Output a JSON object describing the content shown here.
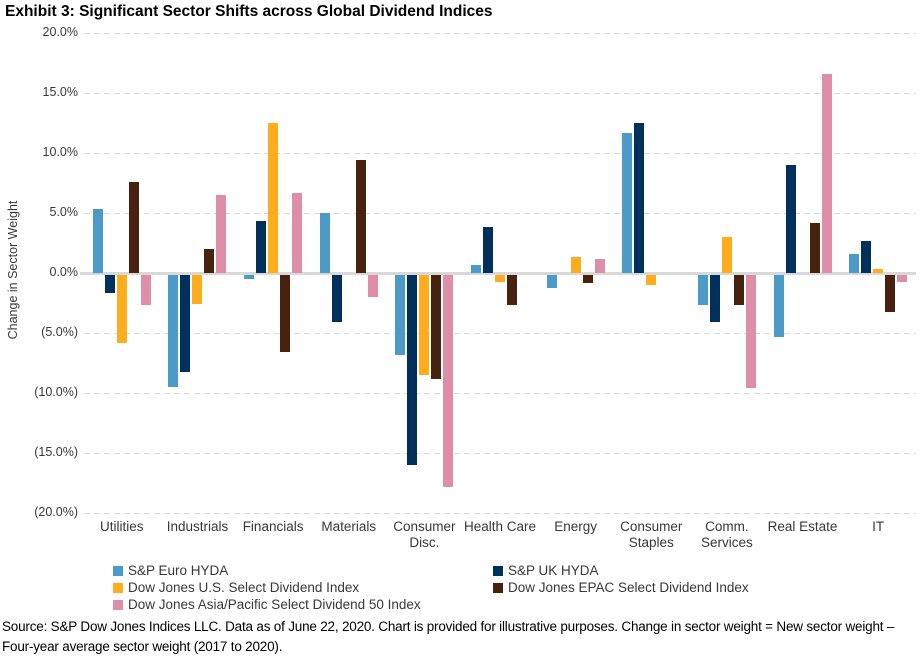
{
  "title": "Exhibit 3: Significant Sector Shifts across Global Dividend Indices",
  "chart_data": {
    "type": "bar",
    "title": "Exhibit 3: Significant Sector Shifts across Global Dividend Indices",
    "xlabel": "",
    "ylabel": "Change in Sector Weight",
    "ylim": [
      -20,
      20
    ],
    "ytick_step": 5,
    "ytick_labels": [
      "20.0%",
      "15.0%",
      "10.0%",
      "5.0%",
      "0.0%",
      "(5.0%)",
      "(10.0%)",
      "(15.0%)",
      "(20.0%)"
    ],
    "grid": "horizontal-dashed",
    "legend_position": "bottom",
    "categories": [
      "Utilities",
      "Industrials",
      "Financials",
      "Materials",
      "Consumer Disc.",
      "Health Care",
      "Energy",
      "Consumer Staples",
      "Comm. Services",
      "Real Estate",
      "IT"
    ],
    "series": [
      {
        "name": "S&P Euro HYDA",
        "color": "#4C9AC7",
        "values": [
          5.3,
          -9.3,
          -0.3,
          5.0,
          -6.7,
          0.7,
          -1.1,
          11.7,
          -2.5,
          -5.2,
          1.6
        ]
      },
      {
        "name": "S&P UK HYDA",
        "color": "#00305C",
        "values": [
          -1.5,
          -8.1,
          4.3,
          -3.9,
          -15.8,
          3.8,
          0,
          12.5,
          -3.9,
          9.0,
          2.7
        ]
      },
      {
        "name": "Dow Jones U.S. Select Dividend Index",
        "color": "#FFAD1C",
        "values": [
          -5.7,
          -2.4,
          12.5,
          0,
          -8.3,
          -0.6,
          1.3,
          -0.8,
          3.0,
          0,
          0.3
        ]
      },
      {
        "name": "Dow Jones EPAC Select Dividend Index",
        "color": "#47230F",
        "values": [
          7.6,
          2.0,
          -6.4,
          9.4,
          -8.7,
          -2.5,
          -0.7,
          0,
          -2.5,
          4.2,
          -3.1
        ]
      },
      {
        "name": "Dow Jones Asia/Pacific Select Dividend 50 Index",
        "color": "#DE8EA9",
        "values": [
          -2.5,
          6.5,
          6.7,
          -1.8,
          -17.7,
          0,
          1.2,
          0,
          -9.4,
          16.6,
          -0.6
        ]
      }
    ],
    "legend_column_layout": "row-major two columns: [S&P Euro HYDA | S&P UK HYDA], [Dow Jones U.S. | Dow Jones EPAC], [Dow Jones Asia/Pacific]"
  },
  "colors": {
    "gridline": "#D9D9D9",
    "zero_line": "#D9D9D9",
    "axis_text": "#383838"
  },
  "footer": {
    "source_text": "Source: S&P Dow Jones Indices LLC. Data as of June 22, 2020. Chart is provided for illustrative purposes. Change in sector weight = New sector weight – Four-year average sector weight (2017 to 2020)."
  }
}
